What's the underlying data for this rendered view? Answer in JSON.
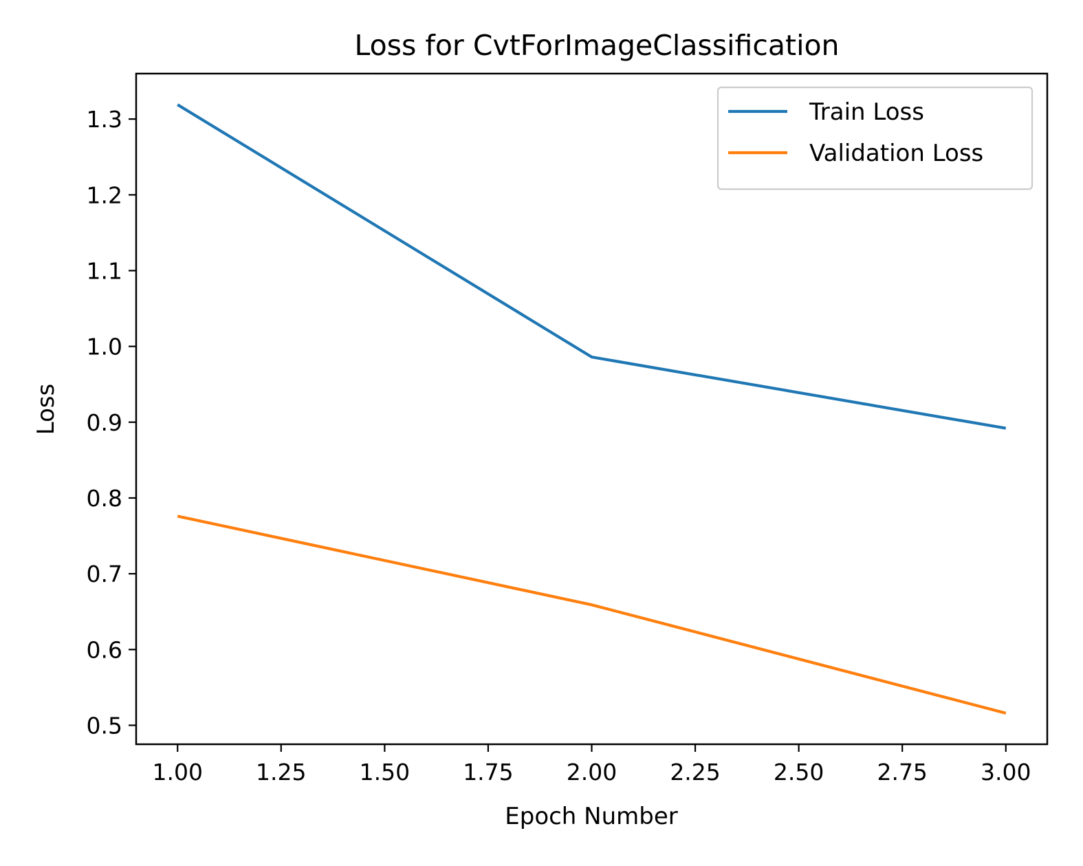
{
  "chart_data": {
    "type": "line",
    "title": "Loss for CvtForImageClassification",
    "xlabel": "Epoch Number",
    "ylabel": "Loss",
    "x": [
      1,
      2,
      3
    ],
    "xlim": [
      0.9,
      3.1
    ],
    "ylim": [
      0.475,
      1.36
    ],
    "xticks": [
      1.0,
      1.25,
      1.5,
      1.75,
      2.0,
      2.25,
      2.5,
      2.75,
      3.0
    ],
    "xtick_labels": [
      "1.00",
      "1.25",
      "1.50",
      "1.75",
      "2.00",
      "2.25",
      "2.50",
      "2.75",
      "3.00"
    ],
    "yticks": [
      0.5,
      0.6,
      0.7,
      0.8,
      0.9,
      1.0,
      1.1,
      1.2,
      1.3
    ],
    "ytick_labels": [
      "0.5",
      "0.6",
      "0.7",
      "0.8",
      "0.9",
      "1.0",
      "1.1",
      "1.2",
      "1.3"
    ],
    "grid": false,
    "legend_position": "top-right",
    "series": [
      {
        "name": "Train Loss",
        "color": "#1f77b4",
        "values": [
          1.319,
          0.986,
          0.892
        ]
      },
      {
        "name": "Validation Loss",
        "color": "#ff7f0e",
        "values": [
          0.776,
          0.659,
          0.516
        ]
      }
    ]
  }
}
